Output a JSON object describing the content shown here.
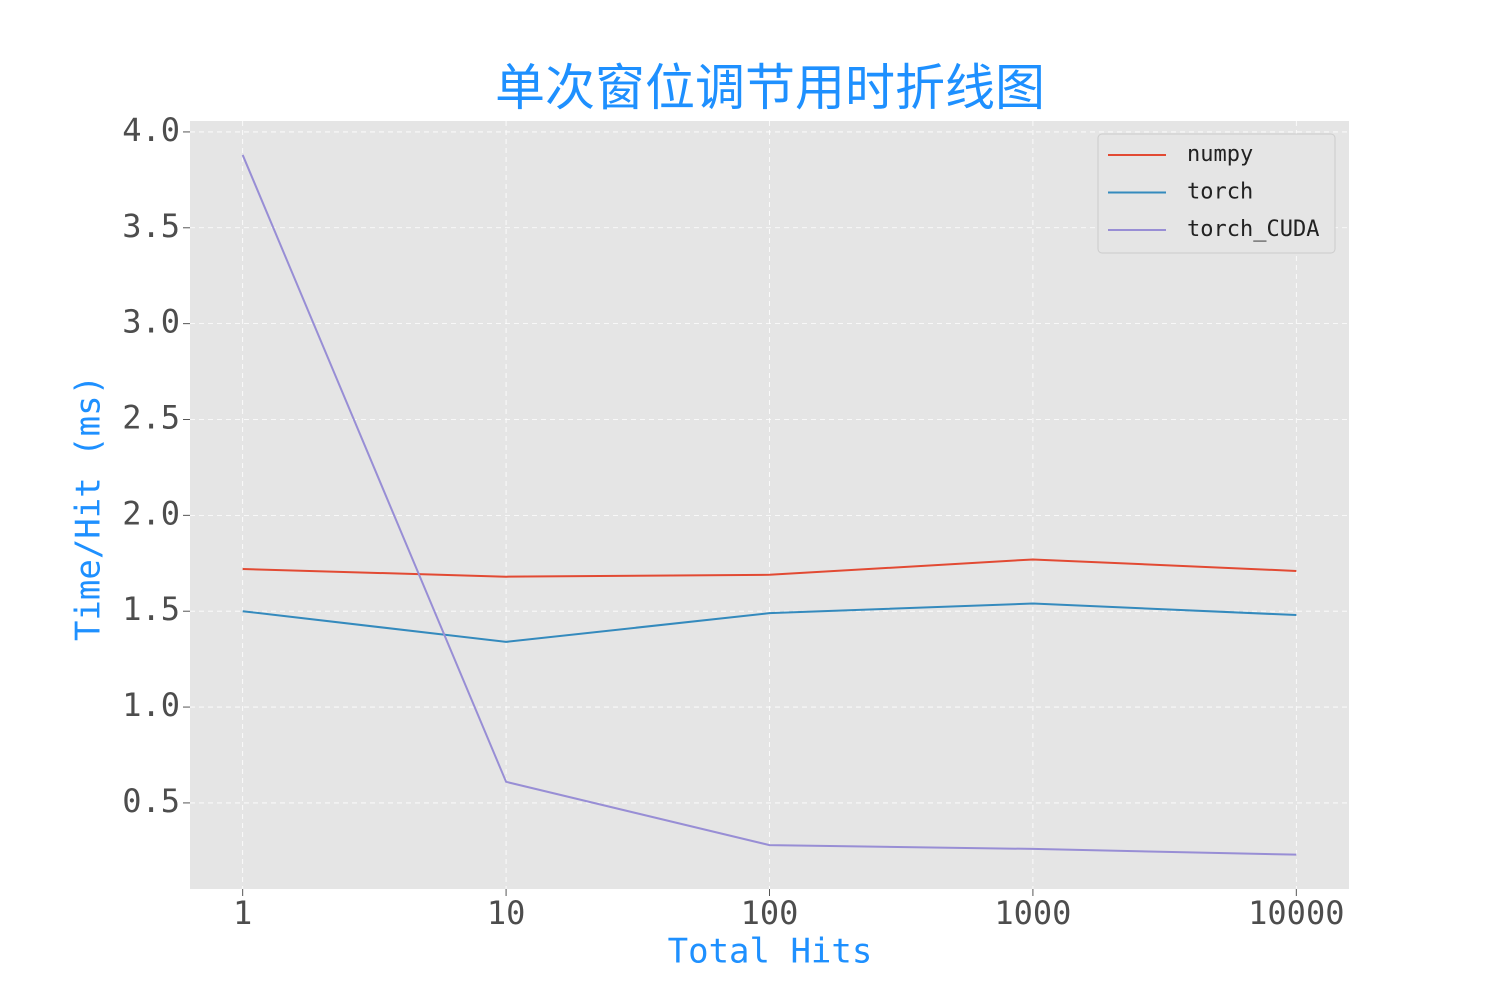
{
  "chart_data": {
    "type": "line",
    "title": "单次窗位调节用时折线图",
    "x_label": "Total Hits",
    "y_label": "Time/Hit (ms)",
    "x": [
      1,
      10,
      100,
      1000,
      10000
    ],
    "x_scale": "log",
    "xlim": [
      0.631,
      15849
    ],
    "xticks": [
      1,
      10,
      100,
      1000,
      10000
    ],
    "ylim": [
      0.051,
      4.057
    ],
    "yticks": [
      0.5,
      {
        "value": 1,
        "label": "1.0"
      },
      1.5,
      {
        "value": 2,
        "label": "2.0"
      },
      2.5,
      {
        "value": 3,
        "label": "3.0"
      },
      3.5,
      {
        "value": 4,
        "label": "4.0"
      }
    ],
    "grid": true,
    "legend": "upper right",
    "series": [
      {
        "name": "numpy",
        "color": "#E24A33",
        "values": [
          1.72,
          1.68,
          1.69,
          1.77,
          1.71
        ]
      },
      {
        "name": "torch",
        "color": "#348ABD",
        "values": [
          1.5,
          1.34,
          1.49,
          1.54,
          1.48
        ]
      },
      {
        "name": "torch_CUDA",
        "color": "#988ED5",
        "values": [
          3.88,
          0.61,
          0.28,
          0.26,
          0.23
        ]
      }
    ]
  }
}
